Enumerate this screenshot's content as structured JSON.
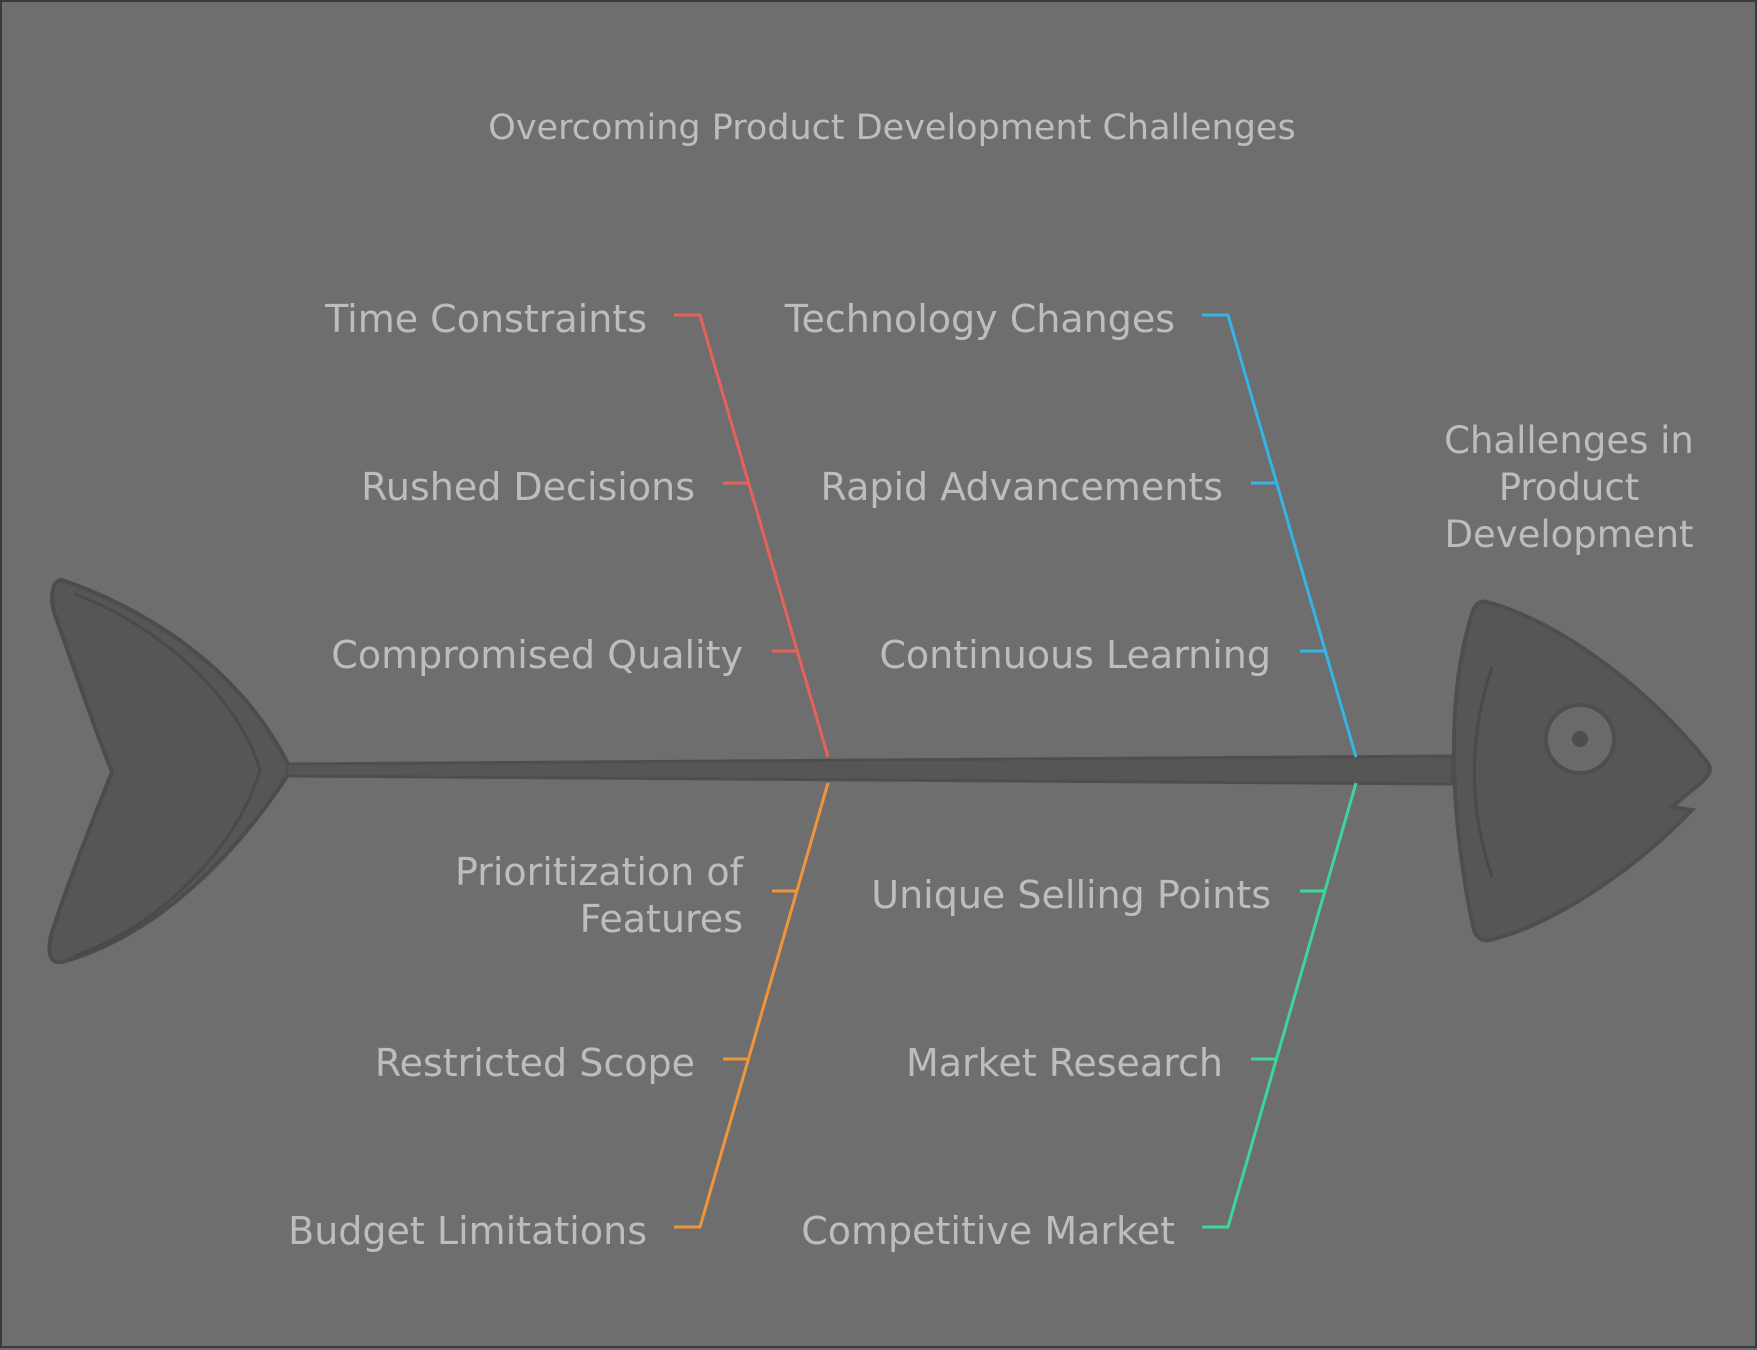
{
  "title": "Overcoming Product Development Challenges",
  "effect": {
    "lines": [
      "Challenges in",
      "Product",
      "Development"
    ]
  },
  "categories": [
    {
      "id": "time",
      "color": "#e8625c",
      "position": "top-left",
      "causes": [
        {
          "lines": [
            "Time Constraints"
          ]
        },
        {
          "lines": [
            "Rushed Decisions"
          ]
        },
        {
          "lines": [
            "Compromised Quality"
          ]
        }
      ]
    },
    {
      "id": "technology",
      "color": "#35b4e6",
      "position": "top-right",
      "causes": [
        {
          "lines": [
            "Technology Changes"
          ]
        },
        {
          "lines": [
            "Rapid Advancements"
          ]
        },
        {
          "lines": [
            "Continuous Learning"
          ]
        }
      ]
    },
    {
      "id": "budget",
      "color": "#f0953a",
      "position": "bottom-left",
      "causes": [
        {
          "lines": [
            "Prioritization of",
            "Features"
          ]
        },
        {
          "lines": [
            "Restricted Scope"
          ]
        },
        {
          "lines": [
            "Budget Limitations"
          ]
        }
      ]
    },
    {
      "id": "market",
      "color": "#3ed698",
      "position": "bottom-right",
      "causes": [
        {
          "lines": [
            "Unique Selling Points"
          ]
        },
        {
          "lines": [
            "Market Research"
          ]
        },
        {
          "lines": [
            "Competitive Market"
          ]
        }
      ]
    }
  ]
}
